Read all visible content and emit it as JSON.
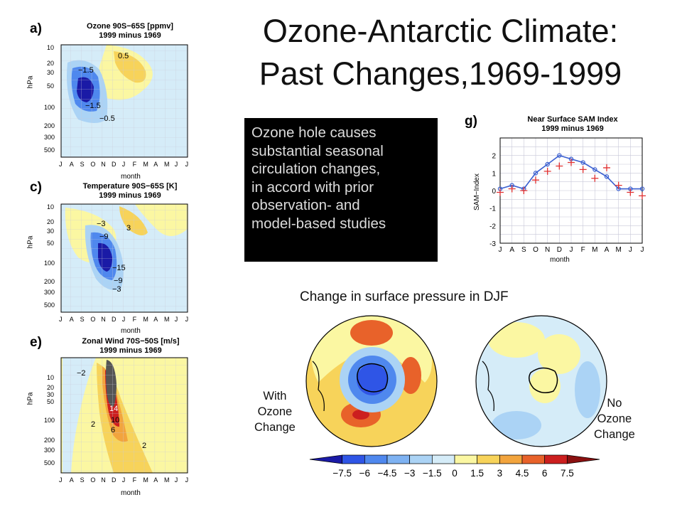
{
  "slide": {
    "title_line1": "Ozone-Antarctic Climate:",
    "title_line2": "Past Changes,1969-1999",
    "callout_lines": [
      "Ozone hole causes",
      "substantial seasonal",
      "circulation changes,",
      "in accord with prior",
      "observation- and",
      "model-based studies"
    ],
    "surface_pressure_title": "Change in surface pressure in DJF",
    "with_label": [
      "With",
      "Ozone",
      "Change"
    ],
    "without_label": [
      "No",
      "Ozone",
      "Change"
    ]
  },
  "panels": {
    "a": {
      "letter": "a)",
      "title1": "Ozone 90S−65S [ppmv]",
      "title2": "1999 minus 1969",
      "ylabel": "hPa",
      "xlabel": "month",
      "contour_labels": [
        "0.5",
        "−1.5",
        "−1.5",
        "−0.5"
      ]
    },
    "c": {
      "letter": "c)",
      "title1": "Temperature 90S−65S [K]",
      "title2": "1999 minus 1969",
      "ylabel": "hPa",
      "xlabel": "month",
      "contour_labels": [
        "−3",
        "3",
        "−9",
        "−15",
        "−9",
        "−3"
      ]
    },
    "e": {
      "letter": "e)",
      "title1": "Zonal Wind  70S−50S [m/s]",
      "title2": "1999 minus 1969",
      "ylabel": "hPa",
      "xlabel": "month",
      "contour_labels": [
        "−2",
        "14",
        "10",
        "6",
        "2",
        "2"
      ]
    },
    "g": {
      "letter": "g)",
      "title1": "Near Surface SAM Index",
      "title2": "1999 minus 1969",
      "ylabel": "SAM−Index",
      "xlabel": "month"
    }
  },
  "pressure_ticks": [
    "10",
    "20",
    "30",
    "50",
    "100",
    "200",
    "300",
    "500"
  ],
  "months": [
    "J",
    "A",
    "S",
    "O",
    "N",
    "D",
    "J",
    "F",
    "M",
    "A",
    "M",
    "J",
    "J"
  ],
  "colorbar": {
    "labels": [
      "−7.5",
      "−6",
      "−4.5",
      "−3",
      "−1.5",
      "0",
      "1.5",
      "3",
      "4.5",
      "6",
      "7.5"
    ],
    "colors": [
      "#1a1aa6",
      "#2f55e6",
      "#4f88ee",
      "#7eb2f2",
      "#abd3f5",
      "#d5ecf8",
      "#fbf7a2",
      "#f7d35a",
      "#f2a43d",
      "#e8622a",
      "#cc1f1f",
      "#8a1010"
    ]
  },
  "chart_data": {
    "type": "line",
    "title": "Near Surface SAM Index",
    "subtitle": "1999 minus 1969",
    "xlabel": "month",
    "ylabel": "SAM−Index",
    "categories": [
      "J",
      "A",
      "S",
      "O",
      "N",
      "D",
      "J",
      "F",
      "M",
      "A",
      "M",
      "J",
      "J"
    ],
    "ylim": [
      -3,
      3
    ],
    "yticks": [
      -3,
      -2,
      -1,
      0,
      1,
      2
    ],
    "grid": true,
    "series": [
      {
        "values": [
          0.1,
          0.3,
          0.1,
          1.0,
          1.5,
          2.0,
          1.8,
          1.6,
          1.2,
          0.8,
          0.1,
          0.1,
          0.1
        ],
        "color": "#3a5fd0",
        "marker": "circle"
      },
      {
        "values": [
          -0.1,
          0.1,
          0.0,
          0.6,
          1.1,
          1.4,
          1.6,
          1.2,
          0.7,
          1.3,
          0.3,
          -0.1,
          -0.3
        ],
        "color": "#e03030",
        "marker": "plus"
      }
    ]
  }
}
